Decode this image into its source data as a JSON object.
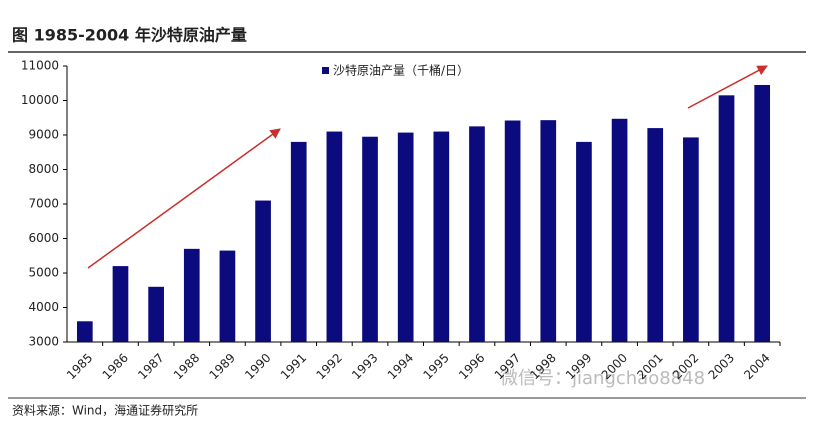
{
  "chart_data": {
    "type": "bar",
    "title": "图 1985-2004 年沙特原油产量",
    "categories": [
      "1985",
      "1986",
      "1987",
      "1988",
      "1989",
      "1990",
      "1991",
      "1992",
      "1993",
      "1994",
      "1995",
      "1996",
      "1997",
      "1998",
      "1999",
      "2000",
      "2001",
      "2002",
      "2003",
      "2004"
    ],
    "series": [
      {
        "name": "沙特原油产量（千桶/日）",
        "color": "#0b0b7e",
        "values": [
          3600,
          5200,
          4600,
          5700,
          5650,
          7100,
          8800,
          9100,
          8950,
          9070,
          9100,
          9250,
          9420,
          9430,
          8800,
          9470,
          9200,
          8930,
          10150,
          10450
        ]
      }
    ],
    "ylim": [
      3000,
      11000
    ],
    "yticks": [
      3000,
      4000,
      5000,
      6000,
      7000,
      8000,
      9000,
      10000,
      11000
    ],
    "grid": false,
    "legend": "top",
    "source": "资料来源：Wind，海通证券研究所",
    "watermark": "微信号：jiangchao8848"
  }
}
